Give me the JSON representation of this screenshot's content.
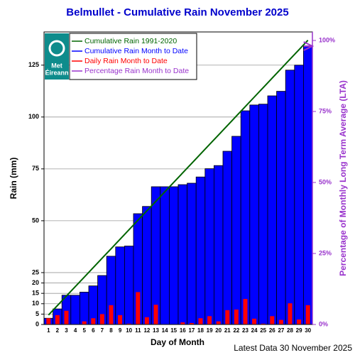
{
  "chart_data": {
    "type": "bar",
    "title": "Belmullet - Cumulative Rain November   2025",
    "x_label": "Day of Month",
    "y_label": "Rain (mm)",
    "y2_label": "Percentage of Monthly Long Term Average (LTA)",
    "footer": "Latest Data 30 November 2025",
    "logo_lines": [
      "Met",
      "Éireann"
    ],
    "categories": [
      "1",
      "2",
      "3",
      "4",
      "5",
      "6",
      "7",
      "8",
      "9",
      "10",
      "11",
      "12",
      "13",
      "14",
      "15",
      "16",
      "17",
      "18",
      "19",
      "20",
      "21",
      "22",
      "23",
      "24",
      "25",
      "26",
      "27",
      "28",
      "29",
      "30"
    ],
    "series": [
      {
        "name": "Cumulative Rain 1991-2020",
        "color": "#006400",
        "kind": "line",
        "values": [
          4.57,
          9.13,
          13.7,
          18.27,
          22.83,
          27.4,
          31.97,
          36.53,
          41.1,
          45.67,
          50.23,
          54.8,
          59.37,
          63.93,
          68.5,
          73.07,
          77.63,
          82.2,
          86.77,
          91.33,
          95.9,
          100.47,
          105.03,
          109.6,
          114.17,
          118.73,
          123.3,
          127.87,
          132.43,
          137
        ]
      },
      {
        "name": "Cumulative Rain Month to Date",
        "color": "#0000ff",
        "kind": "bar",
        "values": [
          3,
          7.5,
          14.1,
          14.1,
          15.6,
          18.6,
          23.6,
          32.9,
          37.4,
          37.8,
          53.4,
          56.9,
          66.4,
          66.4,
          66.4,
          67.4,
          68.1,
          71.1,
          75.1,
          76.6,
          83.5,
          90.7,
          103,
          105.8,
          106.2,
          110.2,
          112.4,
          122.6,
          125,
          134.3
        ]
      },
      {
        "name": "Daily Rain Month to Date",
        "color": "#ff0000",
        "kind": "narrow-bar",
        "values": [
          3,
          4.5,
          6.6,
          0,
          1.5,
          3,
          5,
          9.3,
          4.5,
          0.4,
          15.6,
          3.5,
          9.5,
          0,
          0,
          1,
          0.7,
          3,
          4,
          1.5,
          6.9,
          7.2,
          12.3,
          2.8,
          0.4,
          4,
          2.2,
          10.2,
          2.4,
          9.3
        ]
      },
      {
        "name": "Percentage Rain Month to Date",
        "color": "#9933cc",
        "kind": "arrow",
        "axis": "y2",
        "values": [
          null,
          null,
          null,
          null,
          null,
          null,
          null,
          null,
          null,
          null,
          null,
          null,
          null,
          null,
          null,
          null,
          null,
          null,
          null,
          null,
          null,
          null,
          null,
          null,
          null,
          null,
          null,
          null,
          null,
          98
        ]
      }
    ],
    "ylim": [
      0,
      141
    ],
    "yticks": [
      0,
      5,
      10,
      15,
      20,
      25,
      50,
      75,
      100,
      125
    ],
    "y2lim": [
      0,
      103
    ],
    "y2ticks": [
      {
        "value": 0,
        "label": "0%"
      },
      {
        "value": 25,
        "label": "25%"
      },
      {
        "value": 50,
        "label": "50%"
      },
      {
        "value": 75,
        "label": "75%"
      },
      {
        "value": 100,
        "label": "100%"
      }
    ],
    "grid": true
  }
}
